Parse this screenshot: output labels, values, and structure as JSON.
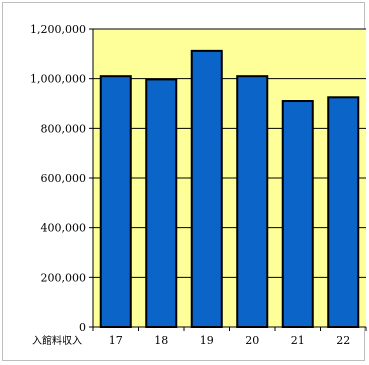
{
  "chart_data": {
    "type": "bar",
    "title": "",
    "xlabel": "入館料収入",
    "ylabel": "",
    "categories": [
      "17",
      "18",
      "19",
      "20",
      "21",
      "22"
    ],
    "values": [
      1010000,
      997000,
      1112000,
      1010000,
      910000,
      925000
    ],
    "ylim": [
      0,
      1200000
    ],
    "yticks": [
      0,
      200000,
      400000,
      600000,
      800000,
      1000000,
      1200000
    ],
    "ytick_labels": [
      "0",
      "200,000",
      "400,000",
      "600,000",
      "800,000",
      "1,000,000",
      "1,200,000"
    ],
    "grid": true,
    "legend": "none",
    "colors": {
      "plot_background": "#ffff99",
      "bar_fill": "#0b64c8",
      "bar_stroke": "#000000",
      "gridline": "#000000"
    }
  }
}
